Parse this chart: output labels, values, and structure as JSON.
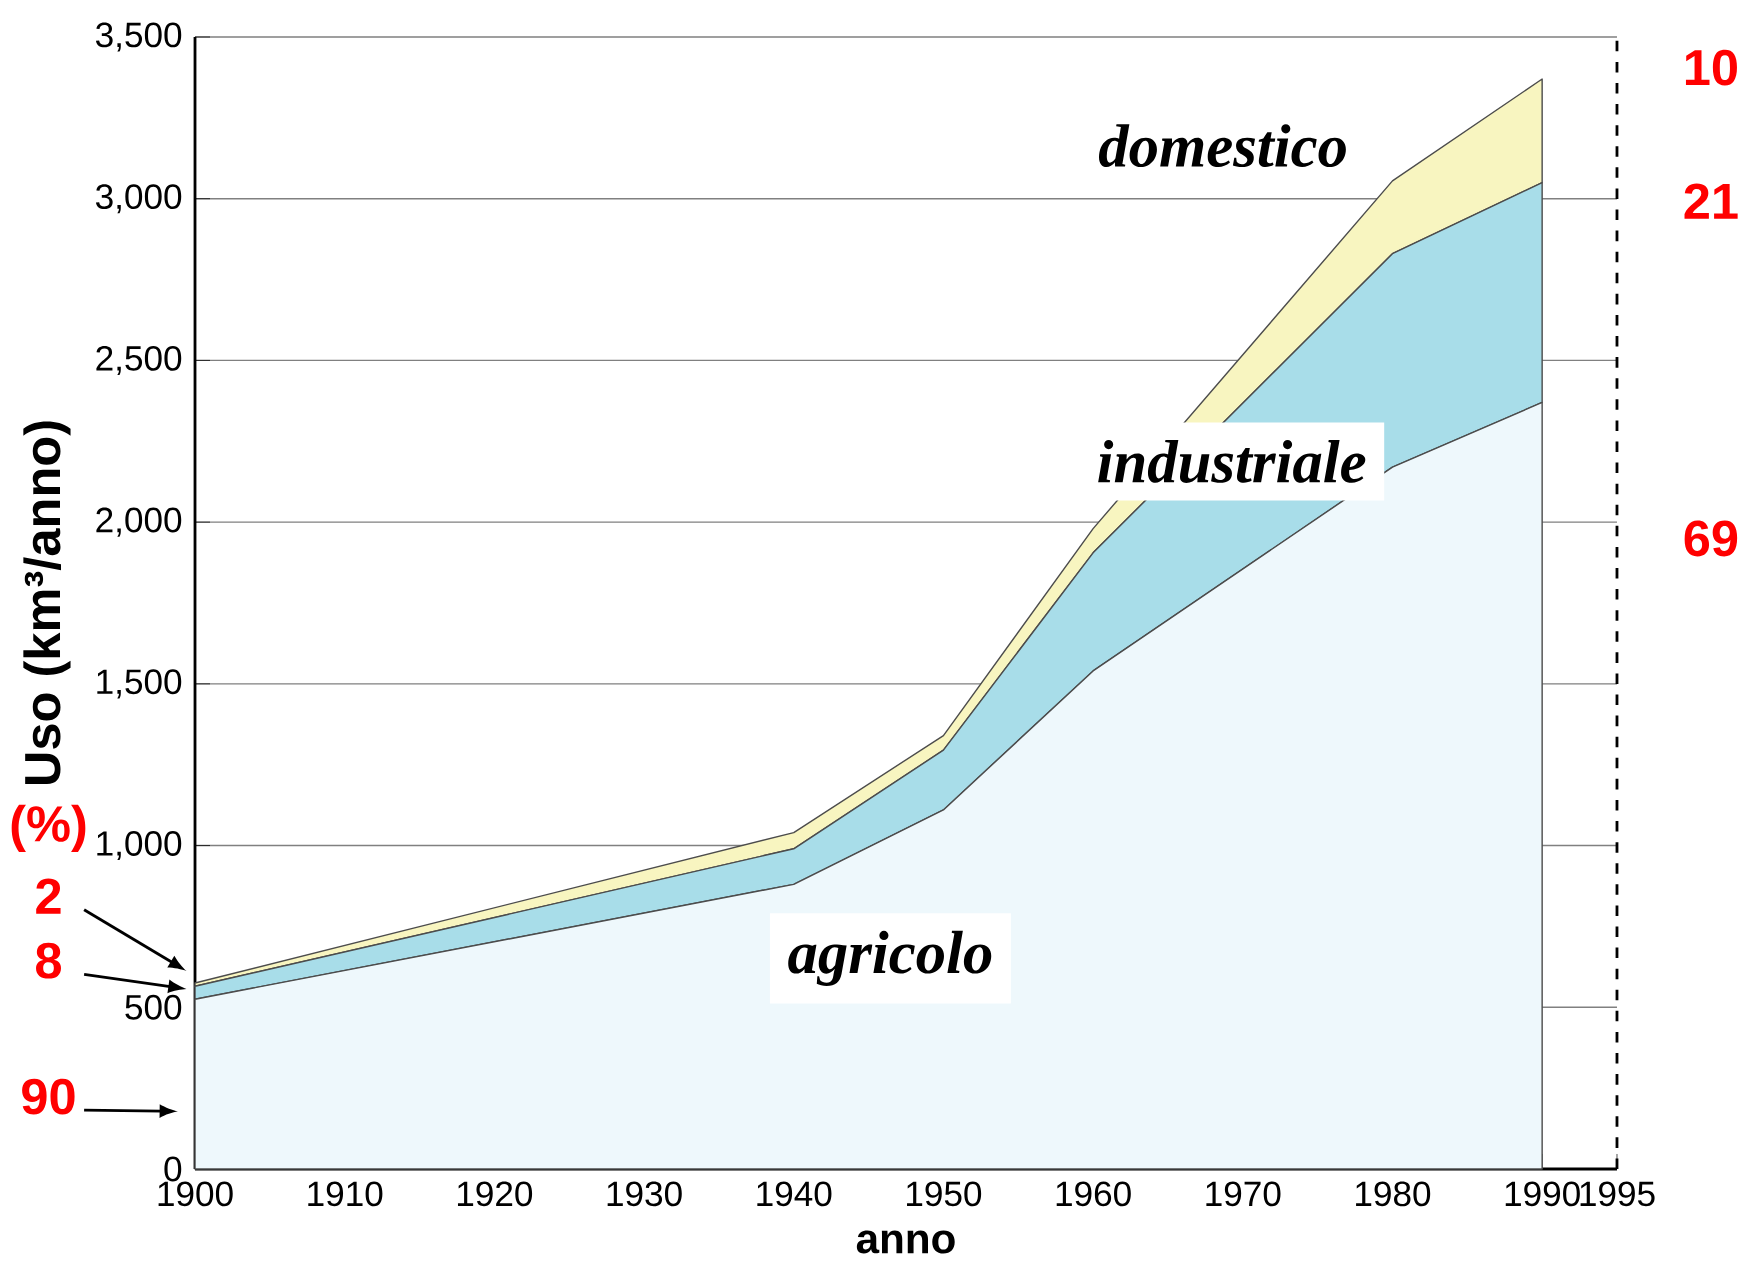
{
  "chart_data": {
    "type": "area",
    "stacked": true,
    "xlabel": "anno",
    "ylabel": "Uso (km³/anno)",
    "x": [
      1900,
      1940,
      1950,
      1960,
      1980,
      1990
    ],
    "series": [
      {
        "color": "#eef8fc",
        "values": [
          525,
          880,
          1110,
          1540,
          2170,
          2370
        ]
      },
      {
        "color": "#a8dde9",
        "values": [
          40,
          110,
          185,
          365,
          660,
          680
        ]
      },
      {
        "color": "#f8f5c0",
        "values": [
          10,
          50,
          45,
          75,
          225,
          320
        ]
      }
    ],
    "xlim": [
      1900,
      1995
    ],
    "xticks": [
      1900,
      1910,
      1920,
      1930,
      1940,
      1950,
      1960,
      1970,
      1980,
      1990,
      1995
    ],
    "ylim": [
      0,
      3500
    ],
    "yticks": [
      0,
      500,
      {
        "value": 1000,
        "label": "1,000"
      },
      {
        "value": 1500,
        "label": "1,500"
      },
      {
        "value": 2000,
        "label": "2,000"
      },
      {
        "value": 2500,
        "label": "2,500"
      },
      {
        "value": 3000,
        "label": "3,000"
      },
      {
        "value": 3500,
        "label": "3,500"
      }
    ],
    "grid": "y",
    "ref_lines": [
      {
        "axis": "x",
        "value": 1995,
        "line_style": "dashed",
        "color": "#000000"
      }
    ],
    "annotations": [
      "agricolo",
      "industriale",
      "domestico",
      "(%)",
      "2",
      "8",
      "90",
      "10",
      "21",
      "69"
    ]
  }
}
